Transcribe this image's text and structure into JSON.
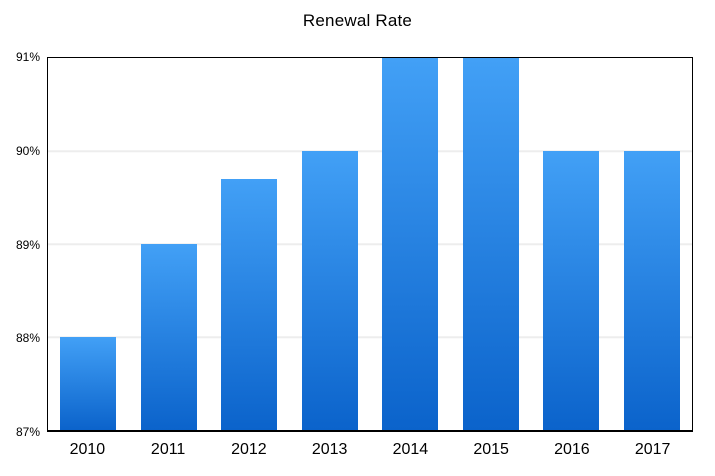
{
  "chart_data": {
    "type": "bar",
    "title": "Renewal Rate",
    "categories": [
      "2010",
      "2011",
      "2012",
      "2013",
      "2014",
      "2015",
      "2016",
      "2017"
    ],
    "values": [
      88,
      89,
      89.7,
      90,
      91,
      91,
      90,
      90
    ],
    "xlabel": "",
    "ylabel": "",
    "ylim": [
      87,
      91
    ],
    "ytick_values": [
      91,
      90,
      89,
      88,
      87
    ],
    "ytick_labels": [
      "91%",
      "90%",
      "89%",
      "88%",
      "87%"
    ],
    "gridline_values": [
      90,
      89,
      88
    ],
    "grid": "horizontal",
    "legend": "none",
    "colors": {
      "bar_gradient_top": "#42a0f6",
      "bar_gradient_bottom": "#0b63cb",
      "gridline": "#ededed",
      "axis_border": "#000000",
      "text": "#000000",
      "background": "#ffffff"
    }
  }
}
